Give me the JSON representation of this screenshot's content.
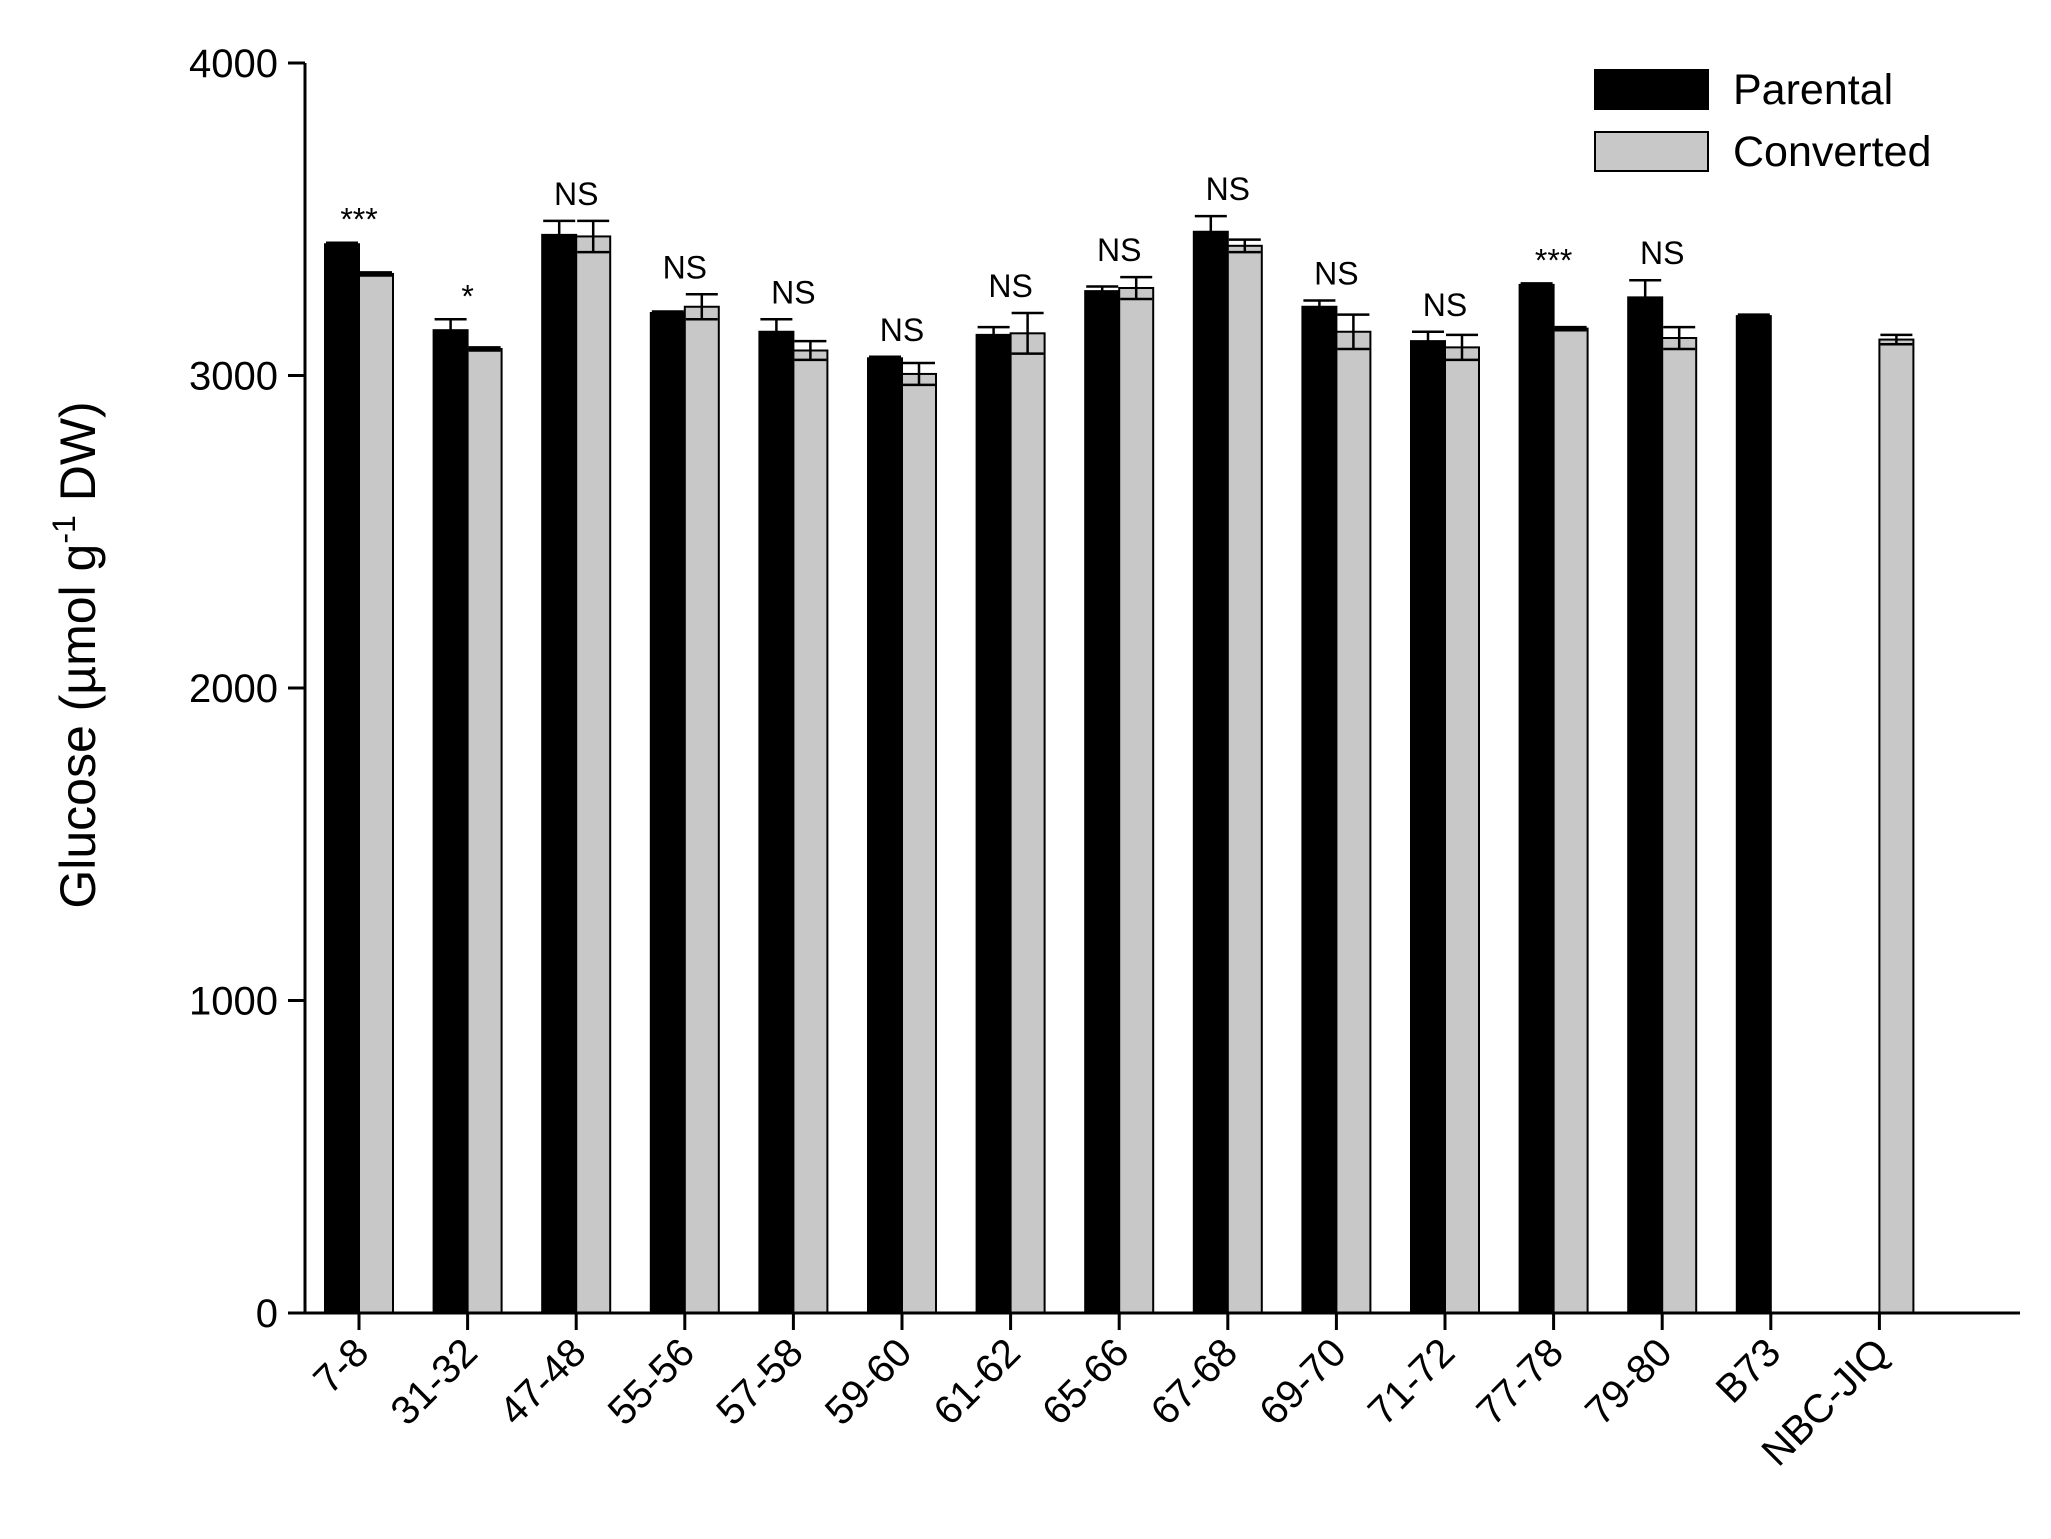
{
  "chart_data": {
    "type": "bar",
    "title": "",
    "xlabel": "",
    "ylabel": {
      "main": "Glucose (µmol g",
      "superscript": "-1",
      "suffix": " DW)"
    },
    "ylim": [
      0,
      4000
    ],
    "yticks": [
      "0",
      "1000",
      "2000",
      "3000",
      "4000"
    ],
    "ytick_values": [
      0,
      1000,
      2000,
      3000,
      4000
    ],
    "grid": false,
    "legend_position": "top-right",
    "categories": [
      "7-8",
      "31-32",
      "47-48",
      "55-56",
      "57-58",
      "59-60",
      "61-62",
      "65-66",
      "67-68",
      "69-70",
      "71-72",
      "77-78",
      "79-80",
      "B73",
      "NBC-JIQ"
    ],
    "series": [
      {
        "name": "Parental",
        "color": "#000000",
        "values": [
          3420,
          3145,
          3450,
          3200,
          3140,
          3055,
          3130,
          3270,
          3460,
          3220,
          3110,
          3290,
          3250,
          3190,
          null
        ],
        "errors": [
          5,
          35,
          45,
          5,
          40,
          5,
          25,
          15,
          50,
          20,
          30,
          5,
          55,
          5,
          null
        ]
      },
      {
        "name": "Converted",
        "color": "#c8c8c8",
        "values": [
          3325,
          3085,
          3445,
          3220,
          3080,
          3005,
          3135,
          3280,
          3415,
          3140,
          3090,
          3150,
          3120,
          null,
          3115
        ],
        "errors": [
          5,
          5,
          50,
          40,
          30,
          35,
          65,
          35,
          20,
          55,
          40,
          5,
          35,
          null,
          15
        ]
      }
    ],
    "annotations": [
      "***",
      "*",
      "NS",
      "NS",
      "NS",
      "NS",
      "NS",
      "NS",
      "NS",
      "NS",
      "NS",
      "***",
      "NS",
      "",
      ""
    ]
  }
}
